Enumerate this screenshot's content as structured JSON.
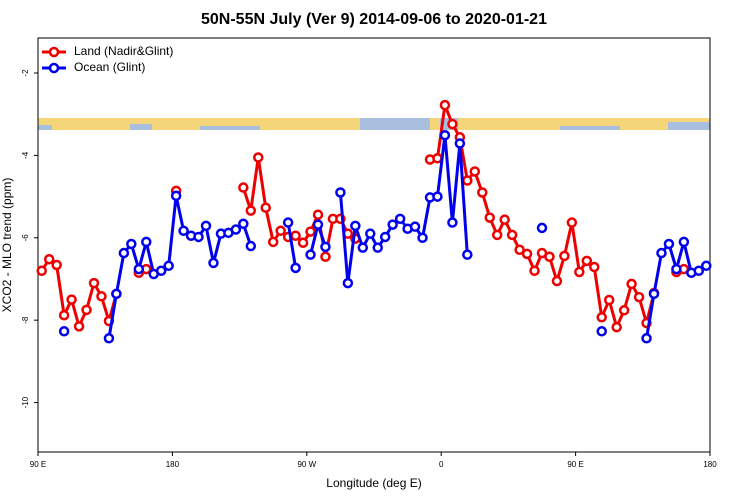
{
  "chart_data": {
    "type": "line",
    "title": "50N-55N July (Ver 9)   2014-09-06 to 2020-01-21",
    "x_label": "Longitude (deg E)",
    "y_label": "XCO2 - MLO trend (ppm)",
    "x": [
      92.5,
      97.5,
      102.5,
      107.5,
      112.5,
      117.5,
      122.5,
      127.5,
      132.5,
      137.5,
      142.5,
      147.5,
      152.5,
      157.5,
      162.5,
      167.5,
      172.5,
      177.5,
      182.5,
      187.5,
      192.5,
      197.5,
      202.5,
      207.5,
      212.5,
      217.5,
      222.5,
      227.5,
      232.5,
      237.5,
      242.5,
      247.5,
      252.5,
      257.5,
      262.5,
      267.5,
      272.5,
      277.5,
      282.5,
      287.5,
      292.5,
      297.5,
      302.5,
      307.5,
      312.5,
      317.5,
      322.5,
      327.5,
      332.5,
      337.5,
      342.5,
      347.5,
      352.5,
      357.5,
      362.5,
      367.5,
      372.5,
      377.5,
      382.5,
      387.5,
      392.5,
      397.5,
      402.5,
      407.5,
      412.5,
      417.5,
      422.5,
      427.5,
      432.5,
      437.5,
      442.5,
      447.5,
      452.5,
      457.5,
      462.5,
      467.5,
      472.5,
      477.5,
      482.5,
      487.5,
      492.5,
      497.5,
      502.5,
      507.5,
      512.5,
      517.5,
      522.5,
      527.5,
      532.5,
      537.5
    ],
    "series": [
      {
        "name": "Land (Nadir&Glint)",
        "color": "#ee0000",
        "values": [
          -6.8,
          -6.52,
          -6.66,
          -7.88,
          -7.5,
          -8.15,
          -7.75,
          -7.1,
          -7.42,
          -8.02,
          -7.36,
          null,
          null,
          -6.85,
          -6.76,
          null,
          null,
          null,
          -4.86,
          null,
          null,
          null,
          null,
          null,
          null,
          null,
          null,
          -4.78,
          -5.34,
          -4.05,
          -5.27,
          -6.1,
          -5.83,
          -5.98,
          -5.95,
          -6.12,
          -5.85,
          -5.44,
          -6.46,
          -5.54,
          -5.54,
          -5.9,
          -6.02,
          null,
          null,
          null,
          null,
          null,
          null,
          null,
          null,
          null,
          -4.1,
          -4.07,
          -2.78,
          -3.24,
          -3.56,
          -4.61,
          -4.39,
          -4.9,
          -5.51,
          -5.93,
          -5.56,
          -5.93,
          -6.29,
          -6.39,
          -6.8,
          -6.37,
          -6.46,
          -7.05,
          -6.44,
          -5.63,
          -6.83,
          -6.56,
          -6.71,
          -7.93,
          -7.51,
          -8.17,
          -7.76,
          -7.12,
          -7.44,
          -8.07,
          -7.34,
          null,
          null,
          -6.83,
          -6.76,
          null,
          null,
          null
        ]
      },
      {
        "name": "Ocean (Glint)",
        "color": "#0000ee",
        "values": [
          null,
          null,
          null,
          -8.27,
          null,
          null,
          null,
          null,
          null,
          -8.44,
          -7.36,
          -6.37,
          -6.15,
          -6.76,
          -6.1,
          -6.88,
          -6.8,
          -6.68,
          -4.98,
          -5.83,
          -5.95,
          -5.98,
          -5.71,
          -6.61,
          -5.9,
          -5.88,
          -5.8,
          -5.66,
          -6.2,
          null,
          null,
          null,
          null,
          -5.63,
          -6.73,
          null,
          -6.41,
          -5.68,
          -6.22,
          null,
          -4.9,
          -7.1,
          -5.71,
          -6.24,
          -5.9,
          -6.24,
          -5.98,
          -5.68,
          -5.54,
          -5.78,
          -5.73,
          -6.0,
          -5.02,
          -5.0,
          -3.51,
          -5.63,
          -3.71,
          -6.41,
          null,
          null,
          null,
          null,
          null,
          null,
          null,
          null,
          null,
          -5.76,
          null,
          null,
          null,
          null,
          null,
          null,
          null,
          -8.27,
          null,
          null,
          null,
          null,
          null,
          -8.44,
          -7.36,
          -6.37,
          -6.15,
          -6.76,
          -6.1,
          -6.85,
          -6.8,
          -6.68
        ]
      }
    ],
    "xlim": [
      90,
      540
    ],
    "xticks": [
      {
        "value": 90,
        "label": "90 E"
      },
      180,
      {
        "value": 270,
        "label": "90 W"
      },
      {
        "value": 360,
        "label": "0"
      },
      {
        "value": 450,
        "label": "90 E"
      },
      {
        "value": 540,
        "label": "180"
      }
    ],
    "ylim": [
      -11.2,
      -1.15
    ],
    "yticks": [
      -10,
      -8,
      -6,
      -4,
      -2
    ],
    "legend": "top-left"
  }
}
